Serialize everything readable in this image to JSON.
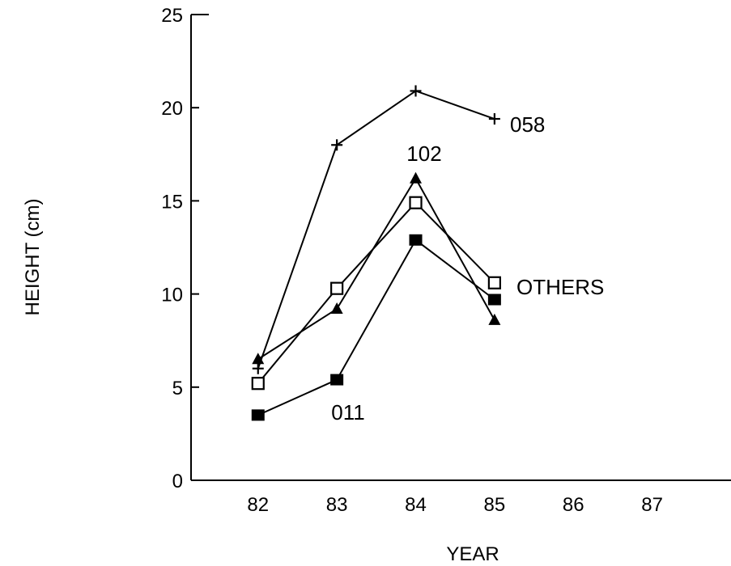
{
  "chart_data": {
    "type": "line",
    "title": "",
    "xlabel": "YEAR",
    "ylabel": "HEIGHT (cm)",
    "x": [
      82,
      83,
      84,
      85,
      86,
      87
    ],
    "xlim": [
      81.15,
      88
    ],
    "ylim": [
      0,
      25
    ],
    "yticks": [
      0,
      5,
      10,
      15,
      20,
      25
    ],
    "grid": false,
    "legend": "none",
    "series": [
      {
        "name": "058",
        "marker": "plus",
        "x": [
          82,
          83,
          84,
          85
        ],
        "values": [
          6.0,
          18.0,
          20.9,
          19.4
        ]
      },
      {
        "name": "102",
        "marker": "triangle",
        "x": [
          82,
          83,
          84,
          85
        ],
        "values": [
          6.5,
          9.2,
          16.2,
          8.6
        ]
      },
      {
        "name": "OTHERS",
        "marker": "open-square",
        "x": [
          82,
          83,
          84,
          85
        ],
        "values": [
          5.2,
          10.3,
          14.9,
          10.6
        ]
      },
      {
        "name": "011",
        "marker": "filled-square",
        "x": [
          82,
          83,
          84,
          85
        ],
        "values": [
          3.5,
          5.4,
          12.9,
          9.7
        ]
      }
    ],
    "colors": {
      "line": "#000000",
      "background": "#ffffff"
    }
  }
}
